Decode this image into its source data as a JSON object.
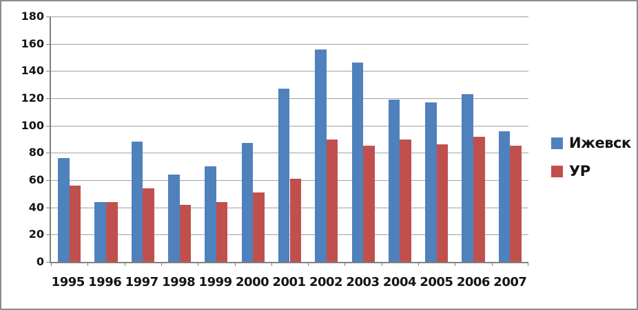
{
  "chart_data": {
    "type": "bar",
    "title": "",
    "xlabel": "",
    "ylabel": "",
    "categories": [
      "1995",
      "1996",
      "1997",
      "1998",
      "1999",
      "2000",
      "2001",
      "2002",
      "2003",
      "2004",
      "2005",
      "2006",
      "2007"
    ],
    "series": [
      {
        "name": "Ижевск",
        "color": "#4F81BD",
        "values": [
          76,
          44,
          88,
          64,
          70,
          87,
          127,
          156,
          146,
          119,
          117,
          123,
          96
        ]
      },
      {
        "name": "УР",
        "color": "#C0504D",
        "values": [
          56,
          44,
          54,
          42,
          44,
          51,
          61,
          90,
          85,
          90,
          86,
          92,
          85
        ]
      }
    ],
    "ylim": [
      0,
      180
    ],
    "y_ticks": [
      180,
      160,
      140,
      120,
      100,
      80,
      60,
      40,
      20,
      0
    ],
    "grid": "horizontal",
    "legend_position": "right",
    "gridline_color": "#a0a0a0",
    "axis_color": "#808080",
    "text_color": "#141414",
    "background_color": "#ffffff",
    "border_color": "#8c8c8c"
  }
}
